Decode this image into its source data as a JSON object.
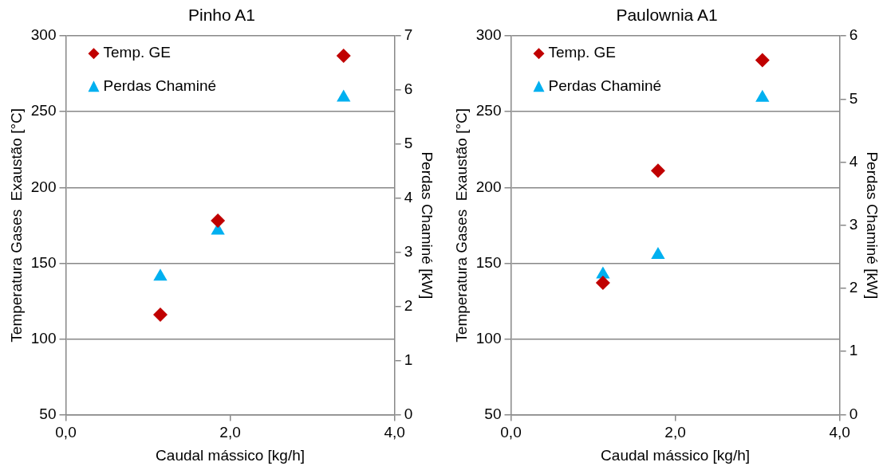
{
  "chart_data": [
    {
      "type": "scatter",
      "title": "Pinho A1",
      "xlabel": "Caudal mássico [kg/h]",
      "ylabel": "Temperatura Gases  Exaustão [°C]",
      "y2label": "Perdas Chaminé [kW]",
      "xlim": [
        0,
        4
      ],
      "xticks": [
        {
          "value": 0,
          "label": "0,0"
        },
        {
          "value": 2,
          "label": "2,0"
        },
        {
          "value": 4,
          "label": "4,0"
        }
      ],
      "ylim": [
        50,
        300
      ],
      "yticks": [
        50,
        100,
        150,
        200,
        250,
        300
      ],
      "y2lim": [
        0,
        7
      ],
      "y2ticks": [
        0,
        1,
        2,
        3,
        4,
        5,
        6,
        7
      ],
      "grid": "y",
      "legend": "top left",
      "series": [
        {
          "name": "Temp. GE",
          "color": "#c00000",
          "marker": "diamond",
          "x": [
            1.15,
            1.85,
            3.38
          ],
          "values": [
            116,
            178,
            287
          ]
        },
        {
          "name": "Perdas Chaminé",
          "color": "#00b0f0",
          "marker": "triangle",
          "axis": "y2",
          "x": [
            1.15,
            1.85,
            3.38
          ],
          "values": [
            2.55,
            3.4,
            5.86
          ]
        }
      ]
    },
    {
      "type": "scatter",
      "title": "Paulownia A1",
      "xlabel": "Caudal mássico [kg/h]",
      "ylabel": "Temperatura Gases  Exaustão [°C]",
      "y2label": "Perdas Chaminé [kW]",
      "xlim": [
        0,
        4
      ],
      "xticks": [
        {
          "value": 0,
          "label": "0,0"
        },
        {
          "value": 2,
          "label": "2,0"
        },
        {
          "value": 4,
          "label": "4,0"
        }
      ],
      "ylim": [
        50,
        300
      ],
      "yticks": [
        50,
        100,
        150,
        200,
        250,
        300
      ],
      "y2lim": [
        0,
        6
      ],
      "y2ticks": [
        0,
        1,
        2,
        3,
        4,
        5,
        6
      ],
      "grid": "y",
      "legend": "top left",
      "series": [
        {
          "name": "Temp. GE",
          "color": "#c00000",
          "marker": "diamond",
          "x": [
            1.12,
            1.79,
            3.06
          ],
          "values": [
            137,
            211,
            284
          ]
        },
        {
          "name": "Perdas Chaminé",
          "color": "#00b0f0",
          "marker": "triangle",
          "axis": "y2",
          "x": [
            1.12,
            1.79,
            3.06
          ],
          "values": [
            2.22,
            2.53,
            5.02
          ]
        }
      ]
    }
  ]
}
